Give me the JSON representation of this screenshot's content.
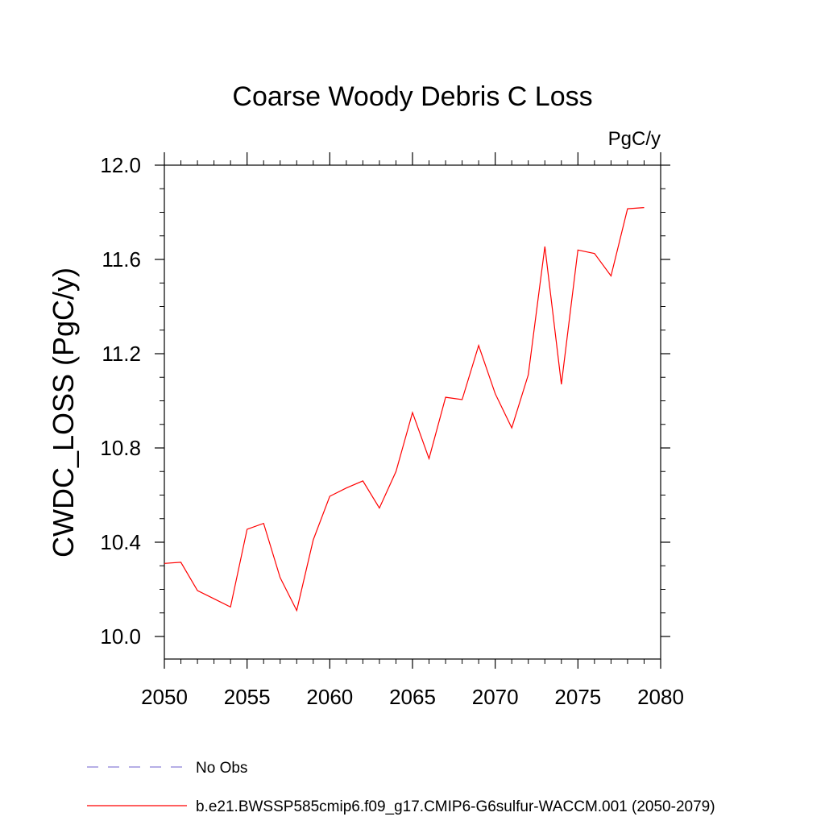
{
  "chart_data": {
    "type": "line",
    "title": "Coarse Woody Debris C Loss",
    "units": "PgC/y",
    "ylabel": "CWDC_LOSS  (PgC/y)",
    "xlabel": "",
    "xlim": [
      2050,
      2080
    ],
    "ylim": [
      9.9,
      12.05
    ],
    "xticks": [
      2050,
      2055,
      2060,
      2065,
      2070,
      2075,
      2080
    ],
    "xtick_labels": [
      "2050",
      "2055",
      "2060",
      "2065",
      "2070",
      "2075",
      "2080"
    ],
    "yticks": [
      10.0,
      10.4,
      10.8,
      11.2,
      11.6,
      12.0
    ],
    "ytick_labels": [
      "10.0",
      "10.4",
      "10.8",
      "11.2",
      "11.6",
      "12.0"
    ],
    "grid": false,
    "legend_position": "bottom-left",
    "series": [
      {
        "name": "b.e21.BWSSP585cmip6.f09_g17.CMIP6-G6sulfur-WACCM.001 (2050-2079)",
        "color": "#ff0000",
        "style": "solid",
        "x": [
          2050,
          2051,
          2052,
          2053,
          2054,
          2055,
          2056,
          2057,
          2058,
          2059,
          2060,
          2061,
          2062,
          2063,
          2064,
          2065,
          2066,
          2067,
          2068,
          2069,
          2070,
          2071,
          2072,
          2073,
          2074,
          2075,
          2076,
          2077,
          2078,
          2079
        ],
        "values": [
          10.31,
          10.315,
          10.195,
          10.16,
          10.125,
          10.455,
          10.48,
          10.25,
          10.11,
          10.41,
          10.595,
          10.63,
          10.66,
          10.545,
          10.7,
          10.95,
          10.755,
          11.015,
          11.005,
          11.235,
          11.03,
          10.885,
          11.11,
          11.655,
          11.07,
          11.64,
          11.625,
          11.53,
          11.815,
          11.82
        ]
      }
    ],
    "legend": [
      {
        "label": "No Obs",
        "color": "#8a7fd6",
        "style": "dashed"
      },
      {
        "label": "b.e21.BWSSP585cmip6.f09_g17.CMIP6-G6sulfur-WACCM.001 (2050-2079)",
        "color": "#ff0000",
        "style": "solid"
      }
    ]
  }
}
